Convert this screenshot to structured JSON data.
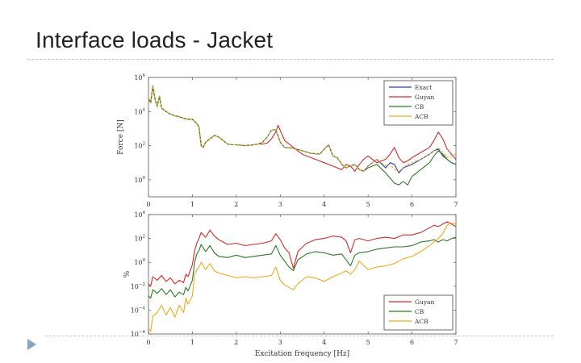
{
  "slide": {
    "title": "Interface loads - Jacket"
  },
  "icons": {
    "bullet": "triangle-bullet-icon"
  },
  "colors": {
    "Exact": "#2b3fbf",
    "Guyan": "#d42a2a",
    "CB": "#2a7a24",
    "ACB": "#f0a81c",
    "rule": "#b8c4d0",
    "bullet": "#8aa2bb"
  },
  "chart_data": [
    {
      "type": "line",
      "title": "",
      "xlabel": "",
      "ylabel": "Force [N]",
      "xlim": [
        0,
        7
      ],
      "ylim_log10": [
        -1,
        6
      ],
      "yscale": "log",
      "xticks": [
        "0",
        "1",
        "2",
        "3",
        "4",
        "5",
        "6",
        "7"
      ],
      "yticks": [
        {
          "value": 0,
          "base": "10",
          "exp": "0"
        },
        {
          "value": 2,
          "base": "10",
          "exp": "2"
        },
        {
          "value": 4,
          "base": "10",
          "exp": "4"
        },
        {
          "value": 6,
          "base": "10",
          "exp": "6"
        }
      ],
      "legend": {
        "position": "top-right",
        "entries": [
          "Exact",
          "Guyan",
          "CB",
          "ACB"
        ]
      },
      "series": [
        {
          "name": "Exact",
          "style": "solid",
          "x": [
            0.0,
            0.05,
            0.1,
            0.15,
            0.2,
            0.25,
            0.3,
            0.4,
            0.5,
            0.6,
            0.7,
            0.8,
            0.9,
            1.0,
            1.1,
            1.15,
            1.2,
            1.25,
            1.3,
            1.4,
            1.5,
            1.6,
            1.7,
            1.8,
            1.9,
            2.0,
            2.2,
            2.4,
            2.5,
            2.6,
            2.7,
            2.8,
            2.9,
            3.0,
            3.1,
            3.3,
            3.5,
            3.7,
            3.9,
            4.0,
            4.1,
            4.2,
            4.3,
            4.4,
            4.5,
            4.6,
            4.7,
            4.8,
            4.9,
            5.0,
            5.2,
            5.4,
            5.5,
            5.6,
            5.7,
            5.8,
            5.9,
            6.0,
            6.2,
            6.4,
            6.5,
            6.6,
            6.7,
            6.8,
            6.9,
            7.0
          ],
          "log10": [
            4.8,
            4.5,
            5.5,
            4.7,
            4.3,
            4.9,
            4.2,
            4.0,
            3.85,
            3.75,
            3.7,
            3.6,
            3.55,
            3.55,
            3.3,
            3.1,
            2.0,
            1.9,
            2.2,
            2.4,
            2.6,
            2.5,
            2.3,
            2.1,
            2.05,
            2.05,
            2.0,
            2.05,
            2.1,
            2.2,
            2.5,
            2.9,
            2.95,
            2.2,
            1.9,
            1.85,
            1.7,
            1.55,
            1.5,
            1.8,
            2.05,
            1.4,
            1.3,
            0.9,
            0.7,
            0.8,
            0.9,
            0.6,
            0.5,
            0.8,
            1.2,
            0.7,
            1.0,
            0.9,
            0.4,
            0.7,
            0.8,
            0.9,
            1.2,
            1.5,
            1.7,
            1.8,
            1.4,
            1.2,
            1.0,
            0.9
          ]
        },
        {
          "name": "Guyan",
          "style": "solid",
          "x": [
            0.0,
            0.05,
            0.1,
            0.15,
            0.2,
            0.25,
            0.3,
            0.4,
            0.5,
            0.6,
            0.7,
            0.8,
            0.9,
            1.0,
            1.1,
            1.15,
            1.2,
            1.25,
            1.3,
            1.4,
            1.5,
            1.6,
            1.7,
            1.8,
            1.9,
            2.0,
            2.2,
            2.4,
            2.5,
            2.6,
            2.7,
            2.8,
            2.9,
            2.95,
            3.0,
            3.1,
            3.3,
            3.5,
            3.7,
            3.9,
            4.0,
            4.1,
            4.2,
            4.3,
            4.4,
            4.5,
            4.6,
            4.7,
            4.8,
            4.9,
            5.0,
            5.2,
            5.4,
            5.5,
            5.6,
            5.7,
            5.8,
            5.9,
            6.0,
            6.2,
            6.4,
            6.5,
            6.6,
            6.7,
            6.8,
            6.9,
            7.0
          ],
          "log10": [
            4.8,
            4.5,
            5.5,
            4.7,
            4.3,
            4.9,
            4.2,
            4.0,
            3.85,
            3.75,
            3.7,
            3.6,
            3.55,
            3.55,
            3.3,
            3.1,
            2.0,
            1.9,
            2.2,
            2.4,
            2.6,
            2.5,
            2.3,
            2.1,
            2.05,
            2.05,
            2.0,
            2.05,
            2.1,
            2.1,
            2.15,
            2.4,
            2.8,
            3.2,
            2.9,
            2.3,
            1.9,
            1.5,
            1.3,
            1.1,
            1.0,
            0.9,
            0.8,
            0.7,
            0.6,
            0.9,
            0.8,
            0.5,
            0.9,
            1.2,
            1.4,
            1.0,
            1.2,
            1.5,
            1.9,
            1.3,
            1.0,
            1.1,
            1.3,
            1.6,
            1.9,
            2.3,
            2.8,
            2.4,
            1.8,
            1.5,
            1.2
          ]
        },
        {
          "name": "CB",
          "style": "solid",
          "x": [
            0.0,
            0.05,
            0.1,
            0.15,
            0.2,
            0.25,
            0.3,
            0.4,
            0.5,
            0.6,
            0.7,
            0.8,
            0.9,
            1.0,
            1.1,
            1.15,
            1.2,
            1.25,
            1.3,
            1.4,
            1.5,
            1.6,
            1.7,
            1.8,
            1.9,
            2.0,
            2.2,
            2.4,
            2.5,
            2.6,
            2.7,
            2.8,
            2.9,
            3.0,
            3.1,
            3.3,
            3.5,
            3.7,
            3.9,
            4.0,
            4.1,
            4.2,
            4.3,
            4.4,
            4.5,
            4.6,
            4.7,
            4.8,
            4.9,
            5.0,
            5.2,
            5.4,
            5.5,
            5.6,
            5.7,
            5.8,
            5.9,
            6.0,
            6.2,
            6.4,
            6.5,
            6.6,
            6.7,
            6.8,
            6.9,
            7.0
          ],
          "log10": [
            4.8,
            4.5,
            5.5,
            4.7,
            4.3,
            4.9,
            4.2,
            4.0,
            3.85,
            3.75,
            3.7,
            3.6,
            3.55,
            3.55,
            3.3,
            3.1,
            2.0,
            1.9,
            2.2,
            2.4,
            2.6,
            2.5,
            2.3,
            2.1,
            2.05,
            2.05,
            2.0,
            2.05,
            2.1,
            2.2,
            2.5,
            2.9,
            2.95,
            2.2,
            1.9,
            1.85,
            1.7,
            1.55,
            1.5,
            1.8,
            2.05,
            1.4,
            1.3,
            0.9,
            0.7,
            0.8,
            0.9,
            0.6,
            0.5,
            0.7,
            0.9,
            0.4,
            0.1,
            -0.2,
            -0.3,
            -0.1,
            -0.3,
            0.2,
            0.6,
            1.0,
            1.4,
            1.7,
            1.5,
            1.2,
            1.0,
            0.9
          ]
        },
        {
          "name": "ACB",
          "style": "dashed",
          "x": [
            0.0,
            0.05,
            0.1,
            0.15,
            0.2,
            0.25,
            0.3,
            0.4,
            0.5,
            0.6,
            0.7,
            0.8,
            0.9,
            1.0,
            1.1,
            1.15,
            1.2,
            1.25,
            1.3,
            1.4,
            1.5,
            1.6,
            1.7,
            1.8,
            1.9,
            2.0,
            2.2,
            2.4,
            2.5,
            2.6,
            2.7,
            2.8,
            2.9,
            3.0,
            3.1,
            3.3,
            3.5,
            3.7,
            3.9,
            4.0,
            4.1,
            4.2,
            4.3,
            4.4,
            4.5,
            4.6,
            4.7,
            4.8,
            4.9,
            5.0,
            5.2,
            5.4,
            5.5,
            5.6,
            5.7,
            5.8,
            5.9,
            6.0,
            6.2,
            6.4,
            6.5,
            6.6,
            6.7,
            6.8,
            6.9,
            7.0
          ],
          "log10": [
            4.8,
            4.5,
            5.5,
            4.7,
            4.3,
            4.9,
            4.2,
            4.0,
            3.85,
            3.75,
            3.7,
            3.6,
            3.55,
            3.55,
            3.3,
            3.1,
            2.0,
            1.9,
            2.2,
            2.4,
            2.6,
            2.5,
            2.3,
            2.1,
            2.05,
            2.05,
            2.0,
            2.05,
            2.1,
            2.2,
            2.5,
            2.9,
            2.95,
            2.2,
            1.9,
            1.85,
            1.7,
            1.55,
            1.5,
            1.8,
            2.05,
            1.4,
            1.3,
            0.9,
            0.7,
            0.8,
            0.9,
            0.6,
            0.5,
            0.8,
            1.2,
            0.8,
            0.9,
            0.6,
            0.5,
            0.7,
            0.9,
            1.0,
            1.2,
            1.5,
            1.7,
            1.9,
            1.6,
            1.3,
            1.4,
            1.5
          ]
        }
      ]
    },
    {
      "type": "line",
      "title": "",
      "xlabel": "Excitation frequency [Hz]",
      "ylabel": "%",
      "xlim": [
        0,
        7
      ],
      "ylim_log10": [
        -6,
        4
      ],
      "yscale": "log",
      "xticks": [
        "0",
        "1",
        "2",
        "3",
        "4",
        "5",
        "6",
        "7"
      ],
      "yticks": [
        {
          "value": 4,
          "base": "10",
          "exp": "4"
        },
        {
          "value": 2,
          "base": "10",
          "exp": "2"
        },
        {
          "value": 0,
          "base": "10",
          "exp": "0"
        },
        {
          "value": -2,
          "base": "10",
          "exp": "−2"
        },
        {
          "value": -4,
          "base": "10",
          "exp": "−4"
        },
        {
          "value": -6,
          "base": "10",
          "exp": "−6"
        }
      ],
      "legend": {
        "position": "bottom-right",
        "entries": [
          "Guyan",
          "CB",
          "ACB"
        ]
      },
      "series": [
        {
          "name": "Guyan",
          "x": [
            0.0,
            0.05,
            0.1,
            0.2,
            0.3,
            0.4,
            0.5,
            0.6,
            0.7,
            0.8,
            0.85,
            0.9,
            1.0,
            1.05,
            1.1,
            1.15,
            1.2,
            1.3,
            1.4,
            1.5,
            1.6,
            1.8,
            2.0,
            2.2,
            2.4,
            2.6,
            2.8,
            2.9,
            3.0,
            3.1,
            3.2,
            3.3,
            3.4,
            3.6,
            3.8,
            4.0,
            4.2,
            4.4,
            4.5,
            4.6,
            4.7,
            4.8,
            5.0,
            5.2,
            5.4,
            5.6,
            5.8,
            6.0,
            6.2,
            6.4,
            6.5,
            6.6,
            6.7,
            6.8,
            6.9,
            7.0
          ],
          "log10": [
            -1.8,
            -2.0,
            -1.2,
            -1.5,
            -1.1,
            -1.6,
            -1.3,
            -1.8,
            -1.5,
            -1.7,
            -1.0,
            -1.2,
            -0.2,
            1.0,
            1.6,
            2.0,
            2.5,
            2.1,
            2.7,
            2.2,
            1.9,
            1.5,
            1.6,
            1.4,
            1.5,
            1.6,
            1.8,
            2.4,
            1.9,
            1.2,
            0.8,
            -0.5,
            0.9,
            1.6,
            1.9,
            2.0,
            2.2,
            2.1,
            1.8,
            0.8,
            1.9,
            2.0,
            1.8,
            2.0,
            2.1,
            2.0,
            2.3,
            2.3,
            2.5,
            2.9,
            3.1,
            3.0,
            3.2,
            3.4,
            3.2,
            3.0
          ]
        },
        {
          "name": "CB",
          "x": [
            0.0,
            0.05,
            0.1,
            0.2,
            0.3,
            0.4,
            0.5,
            0.6,
            0.7,
            0.8,
            0.85,
            0.9,
            1.0,
            1.05,
            1.1,
            1.15,
            1.2,
            1.3,
            1.4,
            1.5,
            1.6,
            1.8,
            2.0,
            2.2,
            2.4,
            2.6,
            2.8,
            2.9,
            3.0,
            3.1,
            3.2,
            3.3,
            3.4,
            3.6,
            3.8,
            4.0,
            4.2,
            4.4,
            4.5,
            4.6,
            4.7,
            4.8,
            5.0,
            5.2,
            5.4,
            5.6,
            5.8,
            6.0,
            6.2,
            6.4,
            6.5,
            6.6,
            6.7,
            6.8,
            6.9,
            7.0
          ],
          "log10": [
            -2.8,
            -3.0,
            -2.3,
            -2.6,
            -2.2,
            -2.7,
            -2.3,
            -2.9,
            -2.5,
            -2.7,
            -2.1,
            -2.4,
            -1.5,
            0.0,
            0.7,
            1.0,
            1.5,
            0.9,
            1.4,
            0.8,
            0.5,
            0.4,
            0.6,
            0.4,
            0.5,
            0.6,
            0.7,
            1.4,
            0.6,
            0.1,
            -0.4,
            -0.7,
            0.2,
            0.7,
            0.9,
            0.8,
            0.6,
            0.7,
            0.2,
            -0.3,
            0.6,
            0.8,
            0.9,
            1.1,
            1.2,
            1.3,
            1.3,
            1.4,
            1.7,
            1.8,
            1.9,
            1.7,
            1.9,
            1.8,
            2.0,
            2.1
          ]
        },
        {
          "name": "ACB",
          "x": [
            0.0,
            0.05,
            0.1,
            0.2,
            0.3,
            0.4,
            0.5,
            0.6,
            0.7,
            0.8,
            0.85,
            0.9,
            1.0,
            1.05,
            1.1,
            1.15,
            1.2,
            1.3,
            1.4,
            1.5,
            1.6,
            1.8,
            2.0,
            2.2,
            2.4,
            2.6,
            2.8,
            2.9,
            3.0,
            3.1,
            3.2,
            3.3,
            3.4,
            3.6,
            3.8,
            4.0,
            4.2,
            4.4,
            4.5,
            4.6,
            4.7,
            4.8,
            5.0,
            5.2,
            5.4,
            5.6,
            5.8,
            6.0,
            6.2,
            6.4,
            6.5,
            6.6,
            6.7,
            6.8,
            6.9,
            7.0
          ],
          "log10": [
            -5.5,
            -5.8,
            -4.5,
            -4.2,
            -3.6,
            -4.4,
            -3.8,
            -4.6,
            -3.6,
            -4.2,
            -3.0,
            -3.5,
            -2.8,
            -1.0,
            -0.6,
            -0.4,
            0.0,
            -0.6,
            -0.1,
            -0.7,
            -0.9,
            -1.1,
            -1.3,
            -1.2,
            -1.3,
            -1.2,
            -1.1,
            -0.4,
            -1.5,
            -1.9,
            -2.1,
            -2.3,
            -1.8,
            -1.2,
            -1.3,
            -1.6,
            -1.2,
            -0.9,
            -0.7,
            -1.0,
            -0.6,
            0.1,
            -0.6,
            -0.4,
            -0.3,
            -0.1,
            0.3,
            0.5,
            0.9,
            1.4,
            1.7,
            2.0,
            2.4,
            3.1,
            3.3,
            3.2
          ]
        }
      ]
    }
  ]
}
